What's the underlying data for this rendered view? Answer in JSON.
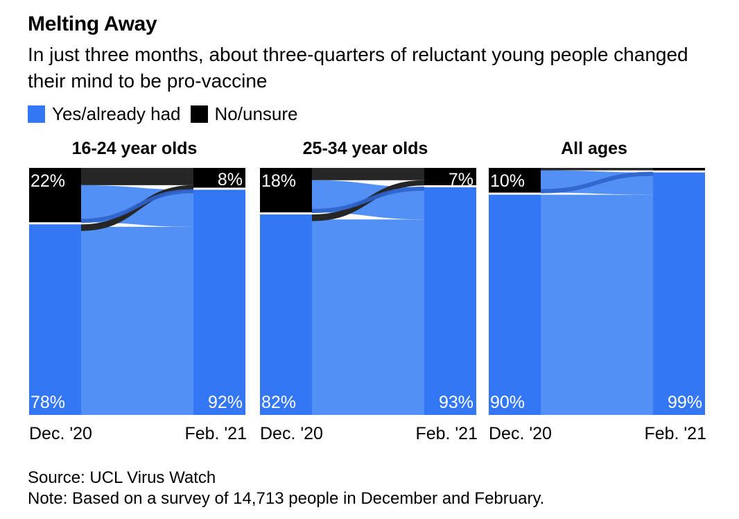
{
  "title": "Melting Away",
  "subtitle": "In just three months, about three-quarters of reluctant young people changed their mind to be pro-vaccine",
  "legend": {
    "yes_label": "Yes/already had",
    "no_label": "No/unsure"
  },
  "colors": {
    "yes": "#3477f4",
    "flow_yes": "#5390f5",
    "no": "#000000",
    "flow_no": "#262626",
    "switch": "#2f63cc"
  },
  "footer": {
    "source": "Source: UCL Virus Watch",
    "note": "Note: Based on a survey of 14,713 people in December and February."
  },
  "chart_data": {
    "type": "sankey",
    "x_labels": [
      "Dec. '20",
      "Feb. '21"
    ],
    "categories": [
      "Yes/already had",
      "No/unsure"
    ],
    "panels": [
      {
        "title": "16-24 year olds",
        "dec": {
          "no": 22,
          "yes": 78,
          "no_label": "22%",
          "yes_label": "78%"
        },
        "feb": {
          "no": 8,
          "yes": 92,
          "no_label": "8%",
          "yes_label": "92%"
        },
        "flows": {
          "yes_to_yes": 77,
          "yes_to_no": 1,
          "no_to_yes": 15,
          "no_to_no": 7
        }
      },
      {
        "title": "25-34 year olds",
        "dec": {
          "no": 18,
          "yes": 82,
          "no_label": "18%",
          "yes_label": "82%"
        },
        "feb": {
          "no": 7,
          "yes": 93,
          "no_label": "7%",
          "yes_label": "93%"
        },
        "flows": {
          "yes_to_yes": 80,
          "yes_to_no": 2,
          "no_to_yes": 13,
          "no_to_no": 5
        }
      },
      {
        "title": "All ages",
        "dec": {
          "no": 10,
          "yes": 90,
          "no_label": "10%",
          "yes_label": "90%"
        },
        "feb": {
          "no": 1,
          "yes": 99,
          "no_label": "",
          "yes_label": "99%"
        },
        "flows": {
          "yes_to_yes": 90,
          "yes_to_no": 0,
          "no_to_yes": 9,
          "no_to_no": 1
        }
      }
    ]
  }
}
